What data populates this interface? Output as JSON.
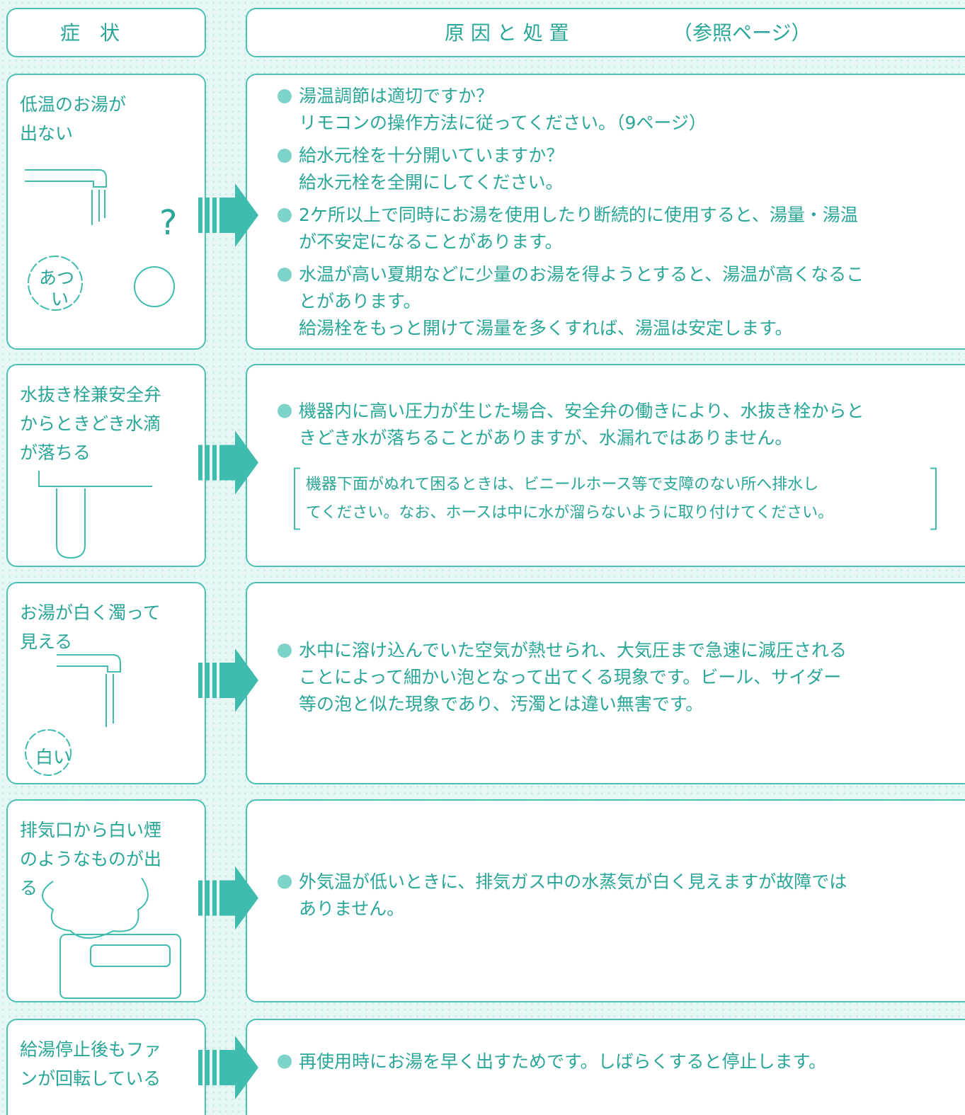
{
  "header": {
    "symptom": "症　状",
    "cause": "原 因 と 処 置",
    "ref": "（参照ページ）"
  },
  "rows": [
    {
      "symptom": [
        "低温のお湯が",
        "出ない"
      ],
      "items": [
        [
          "湯温調節は適切ですか？",
          "リモコンの操作方法に従ってください。（9ページ）"
        ],
        [
          "給水元栓を十分開いていますか？",
          "給水元栓を全開にしてください。"
        ],
        [
          "2ケ所以上で同時にお湯を使用したり断続的に使用すると、湯量・湯温",
          "が不安定になることがあります。"
        ],
        [
          "水温が高い夏期などに少量のお湯を得ようとすると、湯温が高くなるこ",
          "とがあります。",
          "給湯栓をもっと開けて湯量を多くすれば、湯温は安定します。"
        ]
      ],
      "illustration_labels": [
        "?",
        "あつ",
        "い"
      ]
    },
    {
      "symptom": [
        "水抜き栓兼安全弁",
        "からときどき水滴",
        "が落ちる"
      ],
      "items": [
        [
          "機器内に高い圧力が生じた場合、安全弁の働きにより、水抜き栓からと",
          "きどき水が落ちることがありますが、水漏れではありません。"
        ]
      ],
      "note": [
        "機器下面がぬれて困るときは、ビニールホース等で支障のない所へ排水し",
        "てください。なお、ホースは中に水が溜らないように取り付けてください。"
      ]
    },
    {
      "symptom": [
        "お湯が白く濁って",
        "見える"
      ],
      "items": [
        [
          "水中に溶け込んでいた空気が熱せられ、大気圧まで急速に減圧される",
          "ことによって細かい泡となって出てくる現象です。ビール、サイダー",
          "等の泡と似た現象であり、汚濁とは違い無害です。"
        ]
      ],
      "illustration_labels": [
        "白い"
      ]
    },
    {
      "symptom": [
        "排気口から白い煙",
        "のようなものが出",
        "る"
      ],
      "items": [
        [
          "外気温が低いときに、排気ガス中の水蒸気が白く見えますが故障では",
          "ありません。"
        ]
      ]
    },
    {
      "symptom": [
        "給湯停止後もファ",
        "ンが回転している"
      ],
      "items": [
        [
          "再使用時にお湯を早く出すためです。しばらくすると停止します。"
        ]
      ]
    }
  ]
}
